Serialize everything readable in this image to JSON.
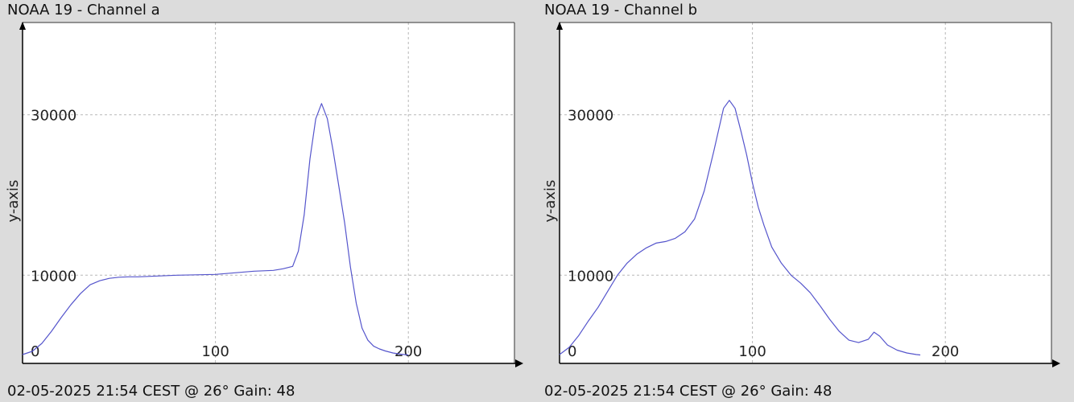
{
  "chart_data": [
    {
      "type": "line",
      "title": "NOAA 19 - Channel a",
      "footer": "02-05-2025 21:54 CEST @ 26° Gain: 48",
      "ylabel": "y-axis",
      "xlabel": "",
      "xlim": [
        0,
        255
      ],
      "ylim": [
        -1000,
        41500
      ],
      "xticks": [
        0,
        100,
        200
      ],
      "yticks": [
        10000,
        30000
      ],
      "grid": true,
      "line_color": "#5555cc",
      "series": [
        {
          "x": [
            0,
            5,
            10,
            15,
            20,
            25,
            30,
            35,
            40,
            45,
            50,
            55,
            60,
            70,
            80,
            90,
            100,
            110,
            120,
            130,
            135,
            140,
            143,
            146,
            149,
            152,
            155,
            158,
            161,
            164,
            167,
            170,
            173,
            176,
            179,
            182,
            185,
            188,
            192,
            196,
            200
          ],
          "y": [
            100,
            500,
            1500,
            3000,
            4700,
            6300,
            7700,
            8800,
            9300,
            9600,
            9750,
            9800,
            9800,
            9900,
            10000,
            10050,
            10100,
            10300,
            10500,
            10600,
            10800,
            11100,
            13000,
            17500,
            24500,
            29500,
            31400,
            29500,
            25500,
            21000,
            16500,
            11000,
            6500,
            3400,
            1900,
            1150,
            800,
            550,
            300,
            150,
            50
          ]
        }
      ]
    },
    {
      "type": "line",
      "title": "NOAA 19 - Channel b",
      "footer": "02-05-2025 21:54 CEST @ 26° Gain: 48",
      "ylabel": "y-axis",
      "xlabel": "",
      "xlim": [
        0,
        255
      ],
      "ylim": [
        -1000,
        41500
      ],
      "xticks": [
        0,
        100,
        200
      ],
      "yticks": [
        10000,
        30000
      ],
      "grid": true,
      "line_color": "#5555cc",
      "series": [
        {
          "x": [
            0,
            5,
            10,
            15,
            20,
            25,
            30,
            35,
            40,
            45,
            50,
            55,
            60,
            65,
            70,
            75,
            80,
            85,
            88,
            91,
            94,
            97,
            100,
            103,
            106,
            110,
            115,
            120,
            125,
            130,
            135,
            140,
            145,
            150,
            155,
            160,
            163,
            166,
            170,
            175,
            180,
            185,
            187
          ],
          "y": [
            100,
            1000,
            2500,
            4300,
            6000,
            8000,
            10000,
            11500,
            12600,
            13400,
            14000,
            14200,
            14600,
            15400,
            17000,
            20500,
            25500,
            30800,
            31800,
            30800,
            28000,
            25000,
            21500,
            18500,
            16200,
            13500,
            11500,
            10000,
            9000,
            7800,
            6200,
            4500,
            3000,
            1900,
            1600,
            2000,
            2900,
            2400,
            1300,
            650,
            300,
            100,
            50
          ]
        }
      ]
    }
  ]
}
